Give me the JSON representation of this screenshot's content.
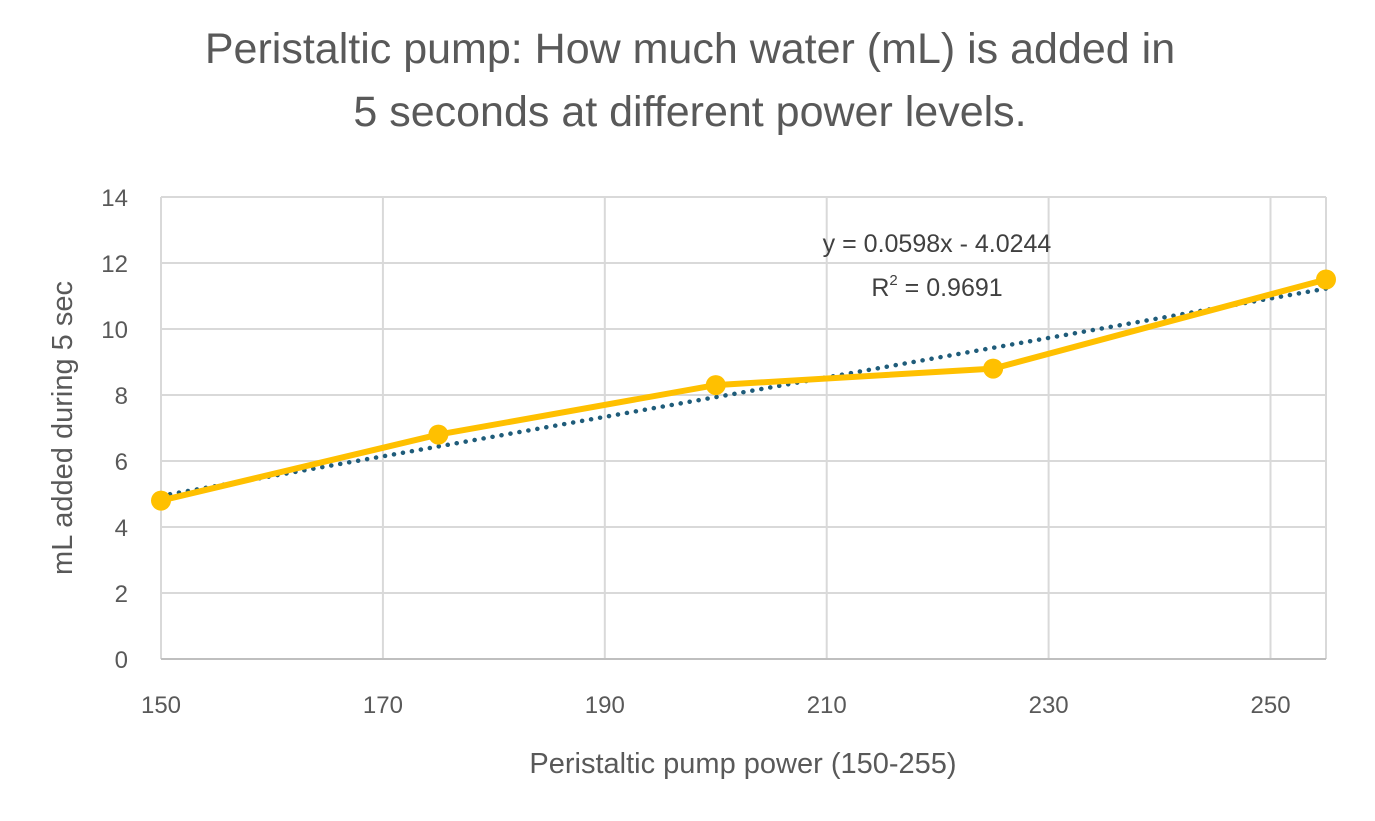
{
  "chart_data": {
    "type": "line",
    "title_lines": [
      "Peristaltic pump: How much water (mL) is added in",
      "5 seconds at different power levels."
    ],
    "xlabel": "Peristaltic pump power (150-255)",
    "ylabel": "mL added during 5 sec",
    "xlim": [
      150,
      255
    ],
    "ylim": [
      0,
      14
    ],
    "x_ticks": [
      150,
      170,
      190,
      210,
      230,
      250
    ],
    "y_ticks": [
      0,
      2,
      4,
      6,
      8,
      10,
      12,
      14
    ],
    "grid": true,
    "series": [
      {
        "x": [
          150,
          175,
          200,
          225,
          255
        ],
        "values": [
          4.8,
          6.8,
          8.3,
          8.8,
          11.5
        ],
        "color": "#FFC000",
        "marker": "circle"
      }
    ],
    "trendline": {
      "type": "linear",
      "slope": 0.0598,
      "intercept": -4.0244,
      "color": "#1F5C7A",
      "style": "dotted",
      "equation_text": "y = 0.0598x - 4.0244",
      "r2_prefix": "R",
      "r2_superscript": "2",
      "r2_value_text": " = 0.9691"
    }
  }
}
